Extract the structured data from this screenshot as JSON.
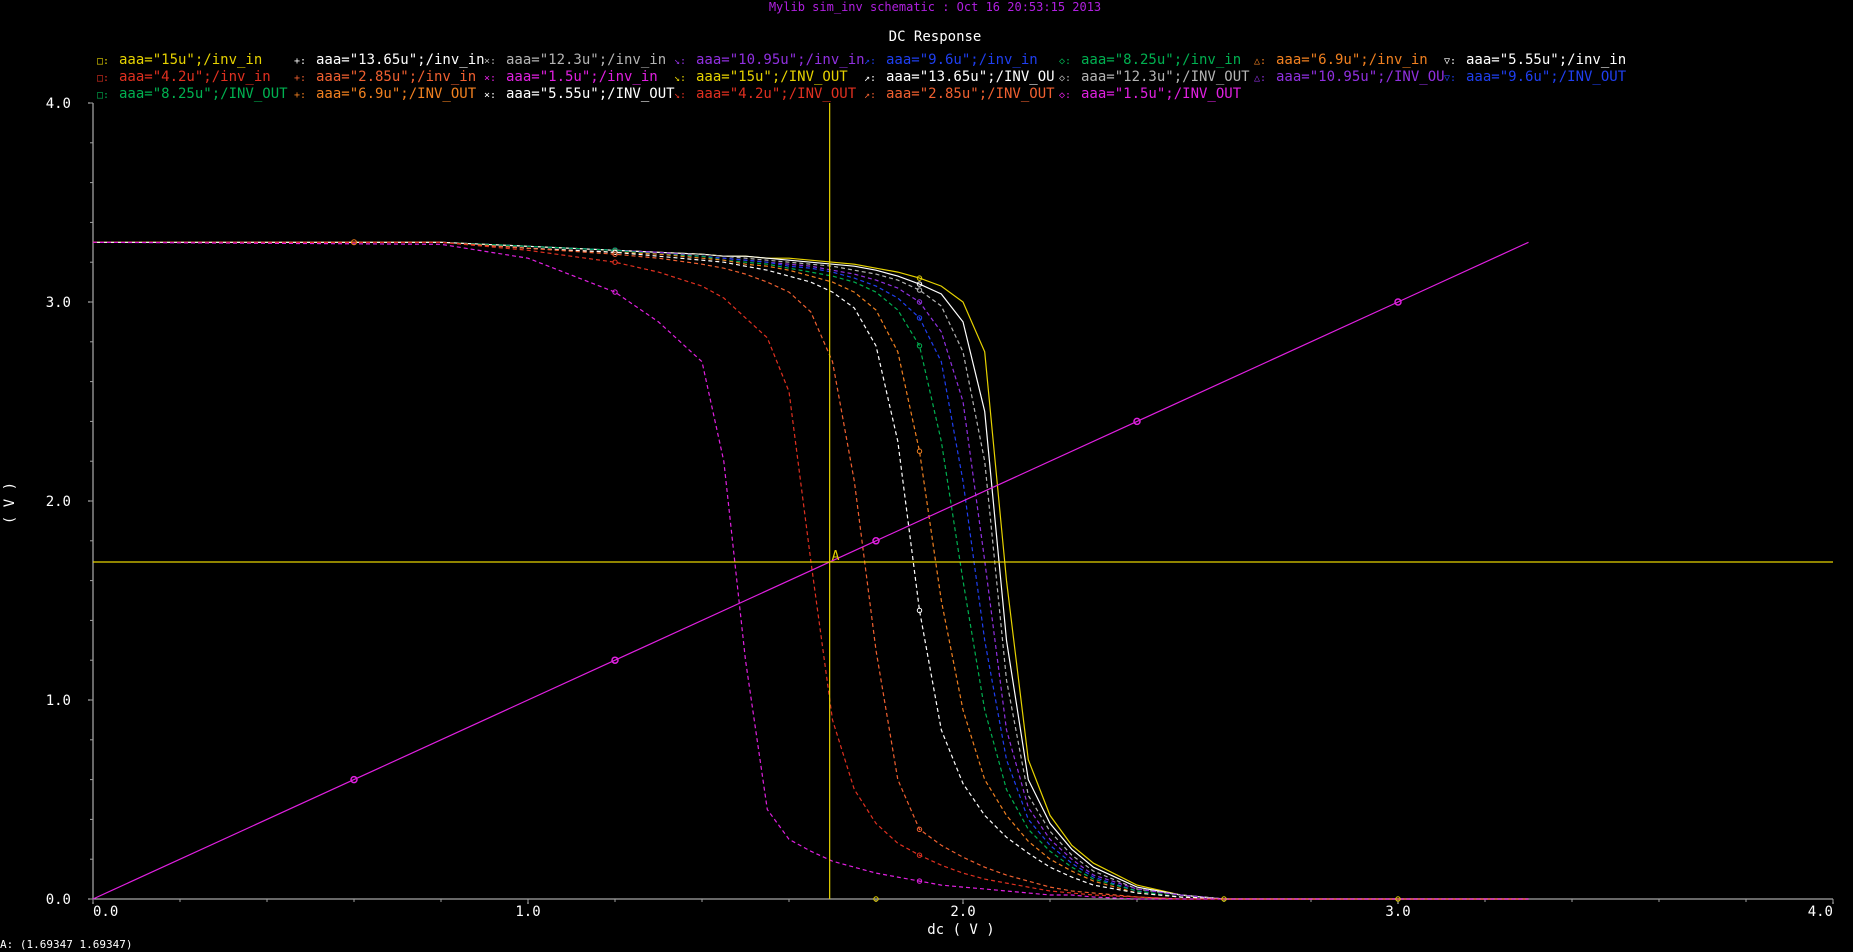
{
  "window_title": "Mylib sim_inv schematic : Oct 16 20:53:15 2013",
  "colors": {
    "background": "#000000",
    "axis": "#d0d0d0",
    "cursor": "#e6d200",
    "title_bar_text": "#b020e0"
  },
  "status": {
    "marker_readout": "A: (1.69347 1.69347)",
    "marker_label": "A"
  },
  "legend": [
    {
      "text": "aaa=\"15u\";/inv_in",
      "color": "#e6d200"
    },
    {
      "text": "aaa=\"13.65u\";/inv_in",
      "color": "#ffffff"
    },
    {
      "text": "aaa=\"12.3u\";/inv_in",
      "color": "#b4b4b4"
    },
    {
      "text": "aaa=\"10.95u\";/inv_in",
      "color": "#9030e0"
    },
    {
      "text": "aaa=\"9.6u\";/inv_in",
      "color": "#1f3ff0"
    },
    {
      "text": "aaa=\"8.25u\";/inv_in",
      "color": "#00b050"
    },
    {
      "text": "aaa=\"6.9u\";/inv_in",
      "color": "#f08020"
    },
    {
      "text": "aaa=\"5.55u\";/inv_in",
      "color": "#ffffff"
    },
    {
      "text": "aaa=\"4.2u\";/inv_in",
      "color": "#e03020"
    },
    {
      "text": "aaa=\"2.85u\";/inv_in",
      "color": "#f06030"
    },
    {
      "text": "aaa=\"1.5u\";/inv_in",
      "color": "#e020e0"
    },
    {
      "text": "aaa=\"15u\";/INV_OUT",
      "color": "#e6d200"
    },
    {
      "text": "aaa=\"13.65u\";/INV_OU",
      "color": "#ffffff"
    },
    {
      "text": "aaa=\"12.3u\";/INV_OUT",
      "color": "#b4b4b4"
    },
    {
      "text": "aaa=\"10.95u\";/INV_OU",
      "color": "#9030e0"
    },
    {
      "text": "aaa=\"9.6u\";/INV_OUT",
      "color": "#1f3ff0"
    },
    {
      "text": "aaa=\"8.25u\";/INV_OUT",
      "color": "#00b050"
    },
    {
      "text": "aaa=\"6.9u\";/INV_OUT",
      "color": "#f08020"
    },
    {
      "text": "aaa=\"5.55u\";/INV_OUT",
      "color": "#ffffff"
    },
    {
      "text": "aaa=\"4.2u\";/INV_OUT",
      "color": "#e03020"
    },
    {
      "text": "aaa=\"2.85u\";/INV_OUT",
      "color": "#f06030"
    },
    {
      "text": "aaa=\"1.5u\";/INV_OUT",
      "color": "#e020e0"
    }
  ],
  "chart_data": {
    "type": "line",
    "title": "DC Response",
    "xlabel": "dc ( V )",
    "ylabel": "( V )",
    "xlim": [
      0.0,
      4.0
    ],
    "ylim": [
      0.0,
      4.0
    ],
    "xticks": [
      "0.0",
      "1.0",
      "2.0",
      "3.0",
      "4.0"
    ],
    "yticks": [
      "0.0",
      "1.0",
      "2.0",
      "3.0",
      "4.0"
    ],
    "grid": false,
    "legend_position": "top",
    "marker": {
      "label": "A",
      "x": 1.69347,
      "y": 1.69347
    },
    "input_series": {
      "name": "/inv_in (all aaa values overlap)",
      "color": "#e020e0",
      "x": [
        0.0,
        0.6,
        1.2,
        1.8,
        2.4,
        3.0,
        3.3
      ],
      "y": [
        0.0,
        0.6,
        1.2,
        1.8,
        2.4,
        3.0,
        3.3
      ]
    },
    "x": [
      0.0,
      0.8,
      1.0,
      1.2,
      1.3,
      1.4,
      1.45,
      1.5,
      1.55,
      1.6,
      1.65,
      1.7,
      1.75,
      1.8,
      1.85,
      1.9,
      1.95,
      2.0,
      2.05,
      2.1,
      2.15,
      2.2,
      2.25,
      2.3,
      2.4,
      2.5,
      2.6,
      3.3
    ],
    "series": [
      {
        "name": "aaa=\"15u\";/INV_OUT",
        "color": "#e6d200",
        "values": [
          3.3,
          3.3,
          3.28,
          3.26,
          3.25,
          3.24,
          3.23,
          3.23,
          3.22,
          3.22,
          3.21,
          3.2,
          3.19,
          3.17,
          3.15,
          3.12,
          3.08,
          3.0,
          2.75,
          1.6,
          0.7,
          0.42,
          0.27,
          0.18,
          0.07,
          0.02,
          0.0,
          0.0
        ]
      },
      {
        "name": "aaa=\"13.65u\";/INV_OUT",
        "color": "#ffffff",
        "values": [
          3.3,
          3.3,
          3.28,
          3.26,
          3.25,
          3.24,
          3.23,
          3.23,
          3.22,
          3.21,
          3.2,
          3.19,
          3.18,
          3.16,
          3.13,
          3.09,
          3.04,
          2.9,
          2.45,
          1.3,
          0.6,
          0.38,
          0.25,
          0.16,
          0.06,
          0.02,
          0.0,
          0.0
        ]
      },
      {
        "name": "aaa=\"12.3u\";/INV_OUT",
        "color": "#b4b4b4",
        "values": [
          3.3,
          3.3,
          3.28,
          3.26,
          3.25,
          3.24,
          3.23,
          3.22,
          3.21,
          3.2,
          3.19,
          3.18,
          3.16,
          3.14,
          3.11,
          3.06,
          2.98,
          2.75,
          2.2,
          1.1,
          0.52,
          0.34,
          0.22,
          0.14,
          0.05,
          0.02,
          0.0,
          0.0
        ]
      },
      {
        "name": "aaa=\"10.95u\";/INV_OUT",
        "color": "#9030e0",
        "values": [
          3.3,
          3.3,
          3.28,
          3.26,
          3.25,
          3.23,
          3.22,
          3.21,
          3.2,
          3.19,
          3.18,
          3.16,
          3.14,
          3.11,
          3.07,
          3.0,
          2.85,
          2.5,
          1.7,
          0.85,
          0.46,
          0.3,
          0.2,
          0.12,
          0.05,
          0.02,
          0.0,
          0.0
        ]
      },
      {
        "name": "aaa=\"9.6u\";/INV_OUT",
        "color": "#1f3ff0",
        "values": [
          3.3,
          3.3,
          3.28,
          3.26,
          3.24,
          3.23,
          3.22,
          3.21,
          3.2,
          3.18,
          3.17,
          3.15,
          3.12,
          3.08,
          3.02,
          2.92,
          2.7,
          2.1,
          1.3,
          0.7,
          0.4,
          0.27,
          0.18,
          0.11,
          0.04,
          0.01,
          0.0,
          0.0
        ]
      },
      {
        "name": "aaa=\"8.25u\";/INV_OUT",
        "color": "#00b050",
        "values": [
          3.3,
          3.3,
          3.28,
          3.26,
          3.24,
          3.23,
          3.21,
          3.2,
          3.19,
          3.17,
          3.15,
          3.13,
          3.1,
          3.05,
          2.96,
          2.78,
          2.3,
          1.6,
          0.95,
          0.55,
          0.35,
          0.24,
          0.16,
          0.1,
          0.04,
          0.01,
          0.0,
          0.0
        ]
      },
      {
        "name": "aaa=\"6.9u\";/INV_OUT",
        "color": "#f08020",
        "values": [
          3.3,
          3.3,
          3.27,
          3.25,
          3.24,
          3.22,
          3.21,
          3.19,
          3.18,
          3.16,
          3.13,
          3.1,
          3.05,
          2.96,
          2.75,
          2.25,
          1.5,
          0.95,
          0.6,
          0.42,
          0.29,
          0.2,
          0.14,
          0.09,
          0.03,
          0.01,
          0.0,
          0.0
        ]
      },
      {
        "name": "aaa=\"5.55u\";/INV_OUT",
        "color": "#ffffff",
        "values": [
          3.3,
          3.3,
          3.27,
          3.25,
          3.23,
          3.21,
          3.2,
          3.18,
          3.16,
          3.13,
          3.1,
          3.05,
          2.97,
          2.78,
          2.3,
          1.45,
          0.85,
          0.58,
          0.42,
          0.31,
          0.23,
          0.16,
          0.11,
          0.07,
          0.03,
          0.01,
          0.0,
          0.0
        ]
      },
      {
        "name": "aaa=\"4.2u\";/INV_OUT",
        "color": "#f06030",
        "values": [
          3.3,
          3.3,
          3.27,
          3.24,
          3.22,
          3.19,
          3.17,
          3.14,
          3.1,
          3.05,
          2.95,
          2.7,
          2.1,
          1.25,
          0.6,
          0.35,
          0.27,
          0.21,
          0.16,
          0.12,
          0.09,
          0.06,
          0.04,
          0.03,
          0.01,
          0.0,
          0.0,
          0.0
        ]
      },
      {
        "name": "aaa=\"2.85u\";/INV_OUT",
        "color": "#e03020",
        "values": [
          3.3,
          3.3,
          3.26,
          3.2,
          3.15,
          3.08,
          3.02,
          2.92,
          2.82,
          2.55,
          1.7,
          0.9,
          0.55,
          0.38,
          0.28,
          0.22,
          0.17,
          0.13,
          0.1,
          0.08,
          0.06,
          0.04,
          0.03,
          0.02,
          0.01,
          0.0,
          0.0,
          0.0
        ]
      },
      {
        "name": "aaa=\"1.5u\";/INV_OUT",
        "color": "#e020e0",
        "values": [
          3.3,
          3.29,
          3.22,
          3.05,
          2.9,
          2.7,
          2.2,
          1.2,
          0.45,
          0.3,
          0.24,
          0.19,
          0.16,
          0.13,
          0.11,
          0.09,
          0.07,
          0.06,
          0.05,
          0.04,
          0.03,
          0.02,
          0.02,
          0.01,
          0.0,
          0.0,
          0.0,
          0.0
        ]
      }
    ]
  }
}
